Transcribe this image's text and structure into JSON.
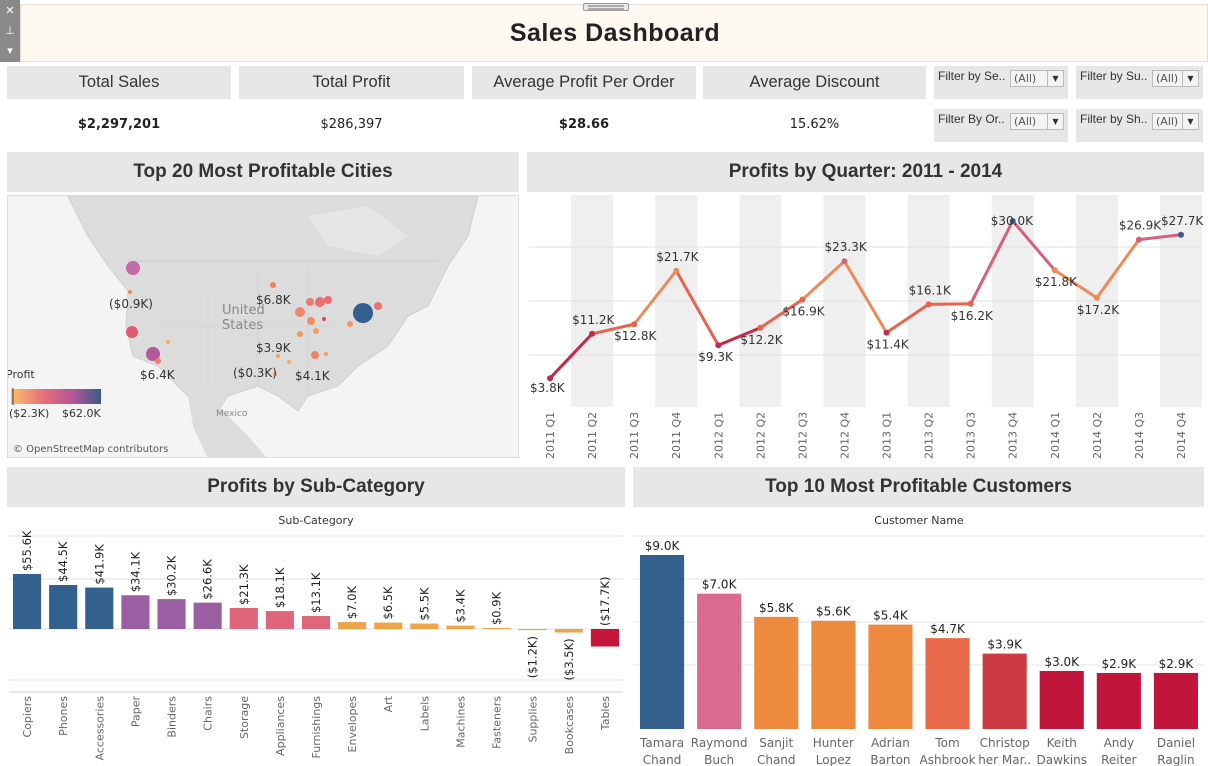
{
  "header": {
    "title": "Sales Dashboard",
    "strip_icons": [
      "close-icon",
      "pin-icon",
      "dropdown-arrow-icon"
    ]
  },
  "kpis": [
    {
      "label": "Total Sales",
      "value": "$2,297,201"
    },
    {
      "label": "Total Profit",
      "value": "$286,397"
    },
    {
      "label": "Average Profit Per Order",
      "value": "$28.66"
    },
    {
      "label": "Average Discount",
      "value": "15.62%"
    }
  ],
  "filters": [
    {
      "label": "Filter by Se..",
      "value": "(All)"
    },
    {
      "label": "Filter by Su..",
      "value": "(All)"
    },
    {
      "label": "Filter By Or..",
      "value": "(All)"
    },
    {
      "label": "Filter by Sh..",
      "value": "(All)"
    }
  ],
  "map": {
    "title": "Top 20 Most Profitable Cities",
    "label_us": "United States",
    "label_us_line1": "United",
    "label_us_line2": "States",
    "label_mexico": "Mexico",
    "attribution": "© OpenStreetMap contributors",
    "legend_title": "Profit",
    "legend_min": "($2.3K)",
    "legend_max": "$62.0K",
    "legend_colors": [
      "#f7a95a",
      "#e36a6a",
      "#b0508f",
      "#3b5b8a"
    ],
    "city_labels": [
      "($0.9K)",
      "$6.8K",
      "$3.9K",
      "($0.3K)",
      "$4.1K",
      "$6.4K"
    ]
  },
  "chart_data": [
    {
      "type": "line",
      "title": "Profits by Quarter: 2011 - 2014",
      "x": [
        "2011 Q1",
        "2011 Q2",
        "2011 Q3",
        "2011 Q4",
        "2012 Q1",
        "2012 Q2",
        "2012 Q3",
        "2012 Q4",
        "2013 Q1",
        "2013 Q2",
        "2013 Q3",
        "2013 Q4",
        "2014 Q1",
        "2014 Q2",
        "2014 Q3",
        "2014 Q4"
      ],
      "values": [
        3.8,
        11.2,
        12.8,
        21.7,
        9.3,
        12.2,
        16.9,
        23.3,
        11.4,
        16.1,
        16.2,
        30.0,
        21.8,
        17.2,
        26.9,
        27.7
      ],
      "labels": [
        "$3.8K",
        "$11.2K",
        "$12.8K",
        "$21.7K",
        "$9.3K",
        "$12.2K",
        "$16.9K",
        "$23.3K",
        "$11.4K",
        "$16.1K",
        "$16.2K",
        "$30.0K",
        "$21.8K",
        "$17.2K",
        "$26.9K",
        "$27.7K"
      ],
      "ylim": [
        0,
        33
      ]
    },
    {
      "type": "bar",
      "title": "Profits by Sub-Category",
      "xlabel": "Sub-Category",
      "categories": [
        "Copiers",
        "Phones",
        "Accessories",
        "Paper",
        "Binders",
        "Chairs",
        "Storage",
        "Appliances",
        "Furnishings",
        "Envelopes",
        "Art",
        "Labels",
        "Machines",
        "Fasteners",
        "Supplies",
        "Bookcases",
        "Tables"
      ],
      "values": [
        55.6,
        44.5,
        41.9,
        34.1,
        30.2,
        26.6,
        21.3,
        18.1,
        13.1,
        7.0,
        6.5,
        5.5,
        3.4,
        0.9,
        -1.2,
        -3.5,
        -17.7
      ],
      "labels": [
        "$55.6K",
        "$44.5K",
        "$41.9K",
        "$34.1K",
        "$30.2K",
        "$26.6K",
        "$21.3K",
        "$18.1K",
        "$13.1K",
        "$7.0K",
        "$6.5K",
        "$5.5K",
        "$3.4K",
        "$0.9K",
        "($1.2K)",
        "($3.5K)",
        "($17.7K)"
      ],
      "colors": [
        "#33608c",
        "#33608c",
        "#33608c",
        "#9a5fa3",
        "#9a5fa3",
        "#9a5fa3",
        "#e0657a",
        "#e0657a",
        "#e0657a",
        "#f0a44a",
        "#f0a44a",
        "#f0a44a",
        "#f0a44a",
        "#f0a44a",
        "#f0a44a",
        "#f0a44a",
        "#c4163c"
      ]
    },
    {
      "type": "bar",
      "title": "Top 10 Most Profitable Customers",
      "xlabel": "Customer Name",
      "categories": [
        "Tamara Chand",
        "Raymond Buch",
        "Sanjit Chand",
        "Hunter Lopez",
        "Adrian Barton",
        "Tom Ashbrook",
        "Christopher Martinez",
        "Keith Dawkins",
        "Andy Reiter",
        "Daniel Raglin"
      ],
      "category_lines": [
        [
          "Tamara",
          "Chand"
        ],
        [
          "Raymond",
          "Buch"
        ],
        [
          "Sanjit",
          "Chand"
        ],
        [
          "Hunter",
          "Lopez"
        ],
        [
          "Adrian",
          "Barton"
        ],
        [
          "Tom",
          "Ashbrook"
        ],
        [
          "Christop",
          "her Mar.."
        ],
        [
          "Keith",
          "Dawkins"
        ],
        [
          "Andy",
          "Reiter"
        ],
        [
          "Daniel",
          "Raglin"
        ]
      ],
      "values": [
        9.0,
        7.0,
        5.8,
        5.6,
        5.4,
        4.7,
        3.9,
        3.0,
        2.9,
        2.9
      ],
      "labels": [
        "$9.0K",
        "$7.0K",
        "$5.8K",
        "$5.6K",
        "$5.4K",
        "$4.7K",
        "$3.9K",
        "$3.0K",
        "$2.9K",
        "$2.9K"
      ],
      "colors": [
        "#33608c",
        "#d96b8f",
        "#ee8a40",
        "#ee8a40",
        "#ee8a40",
        "#e8684a",
        "#cc3a42",
        "#c0163c",
        "#c0163c",
        "#c0163c"
      ]
    }
  ]
}
